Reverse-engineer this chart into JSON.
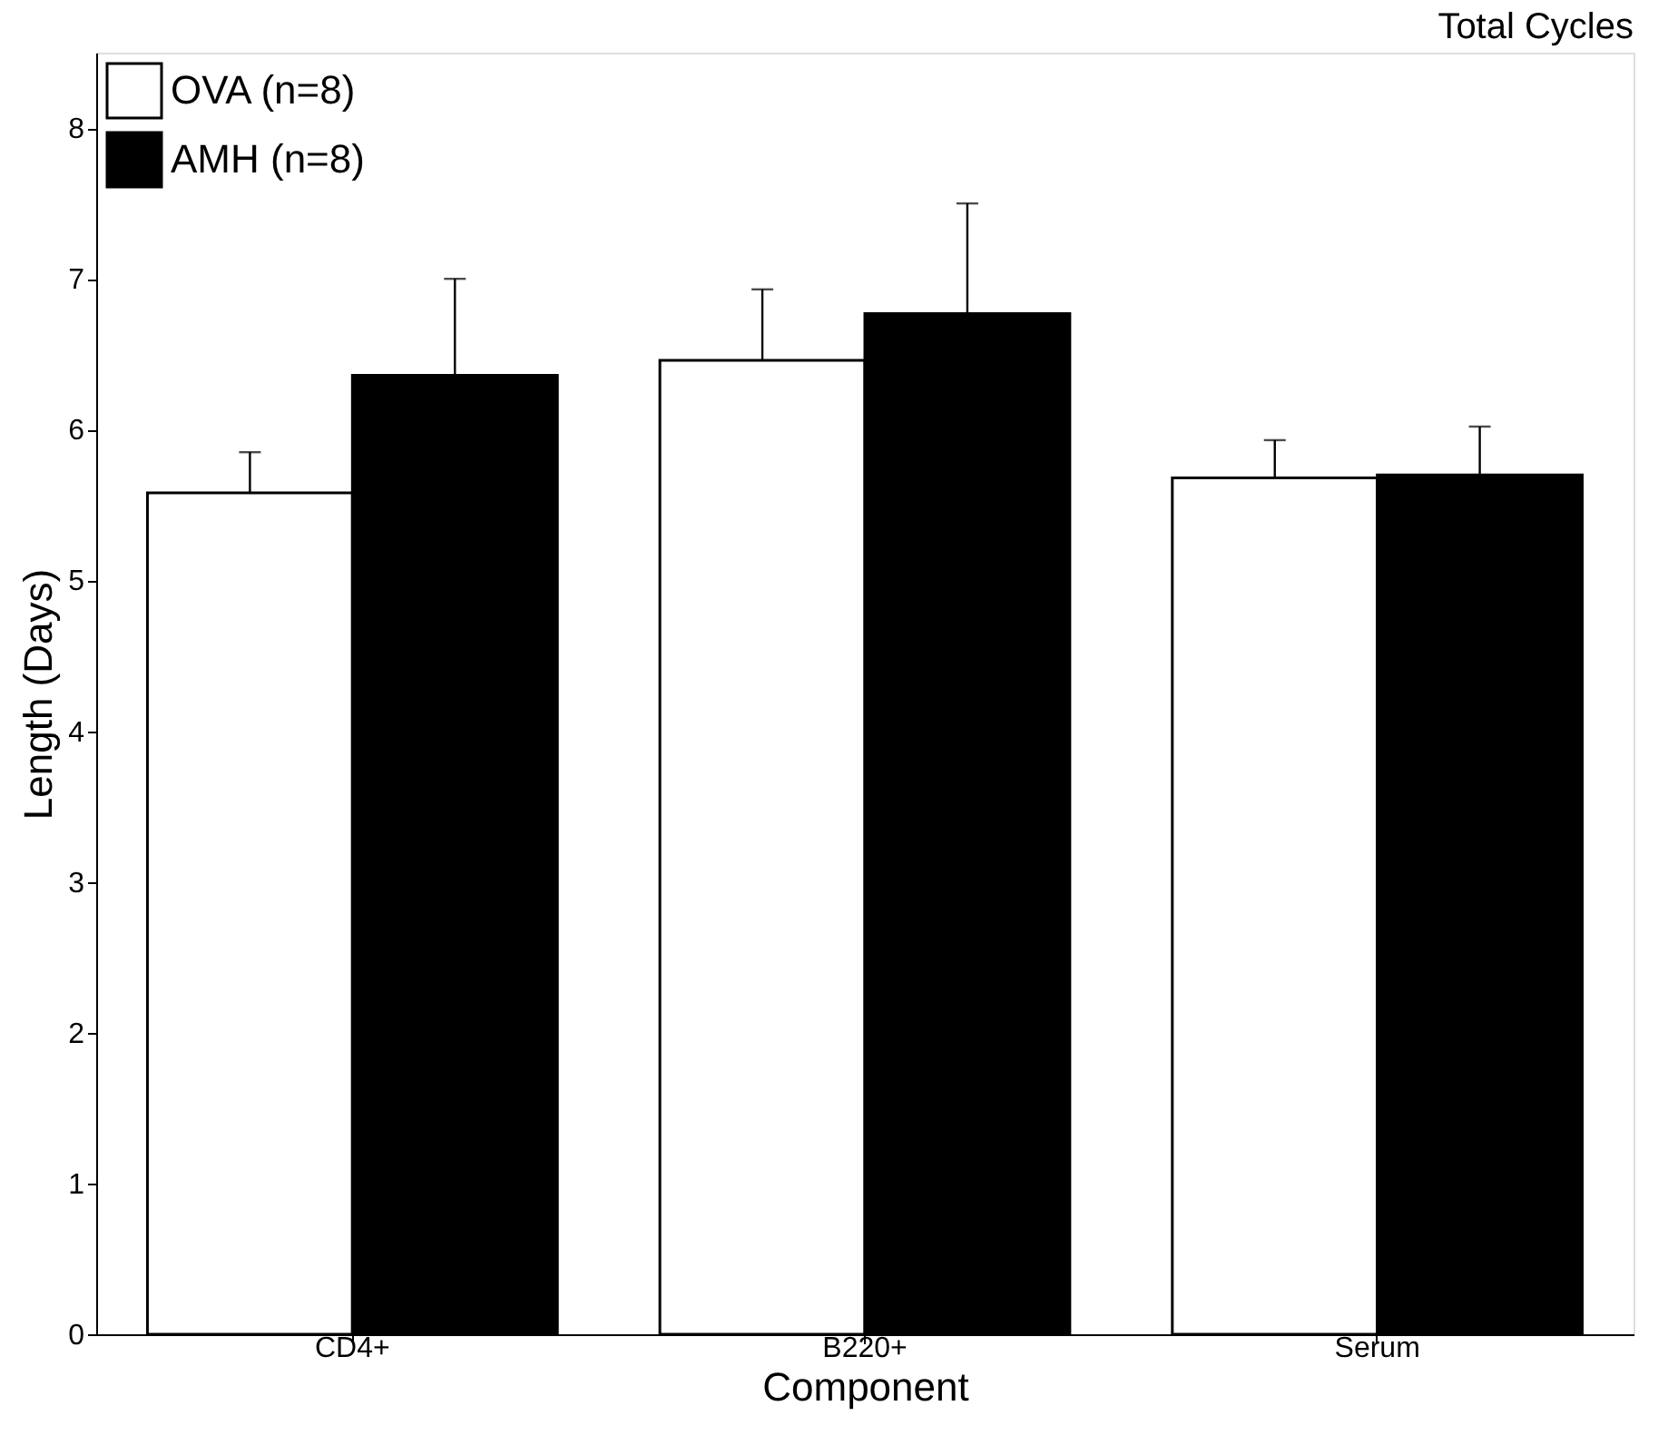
{
  "chart_data": {
    "type": "bar",
    "title": "Total Cycles",
    "xlabel": "Component",
    "ylabel": "Length (Days)",
    "categories": [
      "CD4+",
      "B220+",
      "Serum"
    ],
    "series": [
      {
        "name": "OVA (n=8)",
        "color": "#ffffff",
        "values": [
          5.58,
          6.46,
          5.68
        ],
        "errors": [
          [
            5.58,
            5.85
          ],
          [
            6.46,
            6.93
          ],
          [
            5.68,
            5.93
          ]
        ]
      },
      {
        "name": "AMH (n=8)",
        "color": "#000000",
        "values": [
          6.36,
          6.77,
          5.7
        ],
        "errors": [
          [
            6.36,
            7.0
          ],
          [
            6.77,
            7.5
          ],
          [
            5.7,
            6.02
          ]
        ]
      }
    ],
    "ylim": [
      0,
      8.5
    ],
    "yticks": [
      0,
      1,
      2,
      3,
      4,
      5,
      6,
      7,
      8
    ],
    "grid": false,
    "legend": "top left"
  }
}
